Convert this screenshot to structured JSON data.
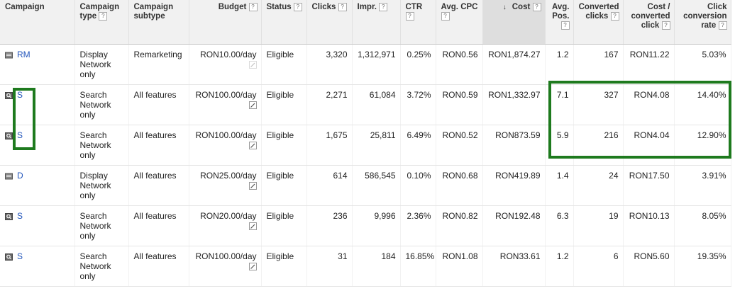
{
  "headers": [
    {
      "label": "Campaign",
      "help": false,
      "align": "l"
    },
    {
      "label": "Campaign type",
      "help": true,
      "align": "l"
    },
    {
      "label": "Campaign subtype",
      "help": false,
      "align": "l"
    },
    {
      "label": "Budget",
      "help": true,
      "align": "r"
    },
    {
      "label": "Status",
      "help": true,
      "align": "l"
    },
    {
      "label": "Clicks",
      "help": true,
      "align": "l"
    },
    {
      "label": "Impr.",
      "help": true,
      "align": "l"
    },
    {
      "label": "CTR",
      "help": true,
      "align": "l"
    },
    {
      "label": "Avg. CPC",
      "help": true,
      "align": "l"
    },
    {
      "label": "Cost",
      "help": true,
      "align": "r",
      "sorted": true,
      "sort_icon": "↓"
    },
    {
      "label": "Avg. Pos.",
      "help": true,
      "align": "r"
    },
    {
      "label": "Converted clicks",
      "help": true,
      "align": "r"
    },
    {
      "label": "Cost / converted click",
      "help": true,
      "align": "r"
    },
    {
      "label": "Click conversion rate",
      "help": true,
      "align": "r"
    }
  ],
  "help_glyph": "?",
  "rows": [
    {
      "icon": "display-network-icon",
      "name": "RM",
      "type": "Display Network only",
      "subtype": "Remarketing",
      "budget": "RON10.00/day",
      "status": "Eligible",
      "clicks": "3,320",
      "impr": "1,312,971",
      "ctr": "0.25%",
      "avg_cpc": "RON0.56",
      "cost": "RON1,874.27",
      "avg_pos": "1.2",
      "conv": "167",
      "cost_conv": "RON11.22",
      "conv_rate": "5.03%"
    },
    {
      "icon": "search-network-icon",
      "name": "S",
      "type": "Search Network only",
      "subtype": "All features",
      "budget": "RON100.00/day",
      "status": "Eligible",
      "clicks": "2,271",
      "impr": "61,084",
      "ctr": "3.72%",
      "avg_cpc": "RON0.59",
      "cost": "RON1,332.97",
      "avg_pos": "7.1",
      "conv": "327",
      "cost_conv": "RON4.08",
      "conv_rate": "14.40%"
    },
    {
      "icon": "search-network-icon",
      "name": "S",
      "type": "Search Network only",
      "subtype": "All features",
      "budget": "RON100.00/day",
      "status": "Eligible",
      "clicks": "1,675",
      "impr": "25,811",
      "ctr": "6.49%",
      "avg_cpc": "RON0.52",
      "cost": "RON873.59",
      "avg_pos": "5.9",
      "conv": "216",
      "cost_conv": "RON4.04",
      "conv_rate": "12.90%"
    },
    {
      "icon": "display-network-icon",
      "name": "D",
      "type": "Display Network only",
      "subtype": "All features",
      "budget": "RON25.00/day",
      "status": "Eligible",
      "clicks": "614",
      "impr": "586,545",
      "ctr": "0.10%",
      "avg_cpc": "RON0.68",
      "cost": "RON419.89",
      "avg_pos": "1.4",
      "conv": "24",
      "cost_conv": "RON17.50",
      "conv_rate": "3.91%"
    },
    {
      "icon": "search-network-icon",
      "name": "S",
      "type": "Search Network only",
      "subtype": "All features",
      "budget": "RON20.00/day",
      "status": "Eligible",
      "clicks": "236",
      "impr": "9,996",
      "ctr": "2.36%",
      "avg_cpc": "RON0.82",
      "cost": "RON192.48",
      "avg_pos": "6.3",
      "conv": "19",
      "cost_conv": "RON10.13",
      "conv_rate": "8.05%"
    },
    {
      "icon": "search-network-icon",
      "name": "S",
      "type": "Search Network only",
      "subtype": "All features",
      "budget": "RON100.00/day",
      "status": "Eligible",
      "clicks": "31",
      "impr": "184",
      "ctr": "16.85%",
      "avg_cpc": "RON1.08",
      "cost": "RON33.61",
      "avg_pos": "1.2",
      "conv": "6",
      "cost_conv": "RON5.60",
      "conv_rate": "19.35%"
    }
  ],
  "colors": {
    "link": "#2255bb",
    "highlight": "#1e7a1e",
    "header_bg": "#f1f1f1",
    "sorted_bg": "#dedede"
  }
}
